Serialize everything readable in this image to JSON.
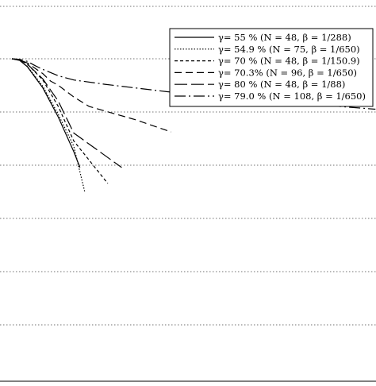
{
  "chart_data": {
    "type": "line",
    "title": "",
    "xlabel": "",
    "ylabel": "",
    "grid": "horizontal dotted",
    "legend_position": "top-right",
    "series": [
      {
        "name": "γ=  55 % (N = 48, β =  1/288)",
        "dash": "",
        "points": [
          [
            0.0,
            1.0
          ],
          [
            0.5,
            0.97
          ],
          [
            1.0,
            0.85
          ],
          [
            2.0,
            0.45
          ],
          [
            3.0,
            -0.1
          ],
          [
            4.0,
            -0.75
          ],
          [
            4.4,
            -1.05
          ]
        ]
      },
      {
        "name": "γ=  54.9 % (N = 75, β =  1/650)",
        "dash": "1.5,2",
        "points": [
          [
            0.0,
            1.0
          ],
          [
            0.5,
            0.97
          ],
          [
            1.0,
            0.86
          ],
          [
            2.0,
            0.48
          ],
          [
            3.0,
            -0.05
          ],
          [
            4.0,
            -0.65
          ],
          [
            4.7,
            -1.5
          ]
        ]
      },
      {
        "name": "γ=  70 % (N = 48, β =  1/150.9)",
        "dash": "4,3",
        "points": [
          [
            0.0,
            1.0
          ],
          [
            0.5,
            0.98
          ],
          [
            1.0,
            0.9
          ],
          [
            2.0,
            0.6
          ],
          [
            3.0,
            0.1
          ],
          [
            4.0,
            -0.55
          ],
          [
            6.2,
            -1.35
          ]
        ]
      },
      {
        "name": "γ=  70.3% (N = 96, β =  1/650)",
        "dash": "9,5",
        "points": [
          [
            0.0,
            1.0
          ],
          [
            0.5,
            0.98
          ],
          [
            1.0,
            0.92
          ],
          [
            2.0,
            0.72
          ],
          [
            2.5,
            0.58
          ],
          [
            3.0,
            0.5
          ],
          [
            4.0,
            0.28
          ],
          [
            5.0,
            0.1
          ],
          [
            8.0,
            -0.15
          ],
          [
            10.3,
            -0.38
          ]
        ]
      },
      {
        "name": "γ=  80 % (N = 48, β =  1/88)",
        "dash": "16,5",
        "points": [
          [
            0.0,
            1.0
          ],
          [
            0.5,
            0.98
          ],
          [
            1.0,
            0.9
          ],
          [
            2.0,
            0.62
          ],
          [
            3.0,
            0.2
          ],
          [
            4.0,
            -0.4
          ],
          [
            7.1,
            -1.05
          ]
        ]
      },
      {
        "name": "γ=  79.0 % (N = 108, β =  1/650)",
        "dash": "14,4,2,4",
        "points": [
          [
            0.0,
            1.0
          ],
          [
            0.5,
            0.99
          ],
          [
            1.0,
            0.95
          ],
          [
            1.5,
            0.87
          ],
          [
            2.0,
            0.8
          ],
          [
            3.0,
            0.68
          ],
          [
            4.0,
            0.6
          ],
          [
            6.0,
            0.52
          ],
          [
            10.0,
            0.38
          ],
          [
            15.0,
            0.25
          ],
          [
            19.0,
            0.15
          ],
          [
            23.5,
            0.05
          ]
        ]
      }
    ]
  }
}
